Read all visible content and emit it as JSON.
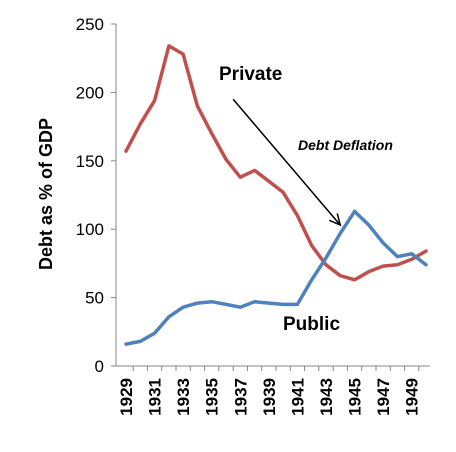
{
  "chart_data": {
    "type": "line",
    "ylabel": "Debt as % of GDP",
    "xlabel": "",
    "ylim": [
      0,
      250
    ],
    "yticks": [
      0,
      50,
      100,
      150,
      200,
      250
    ],
    "x": [
      1929,
      1930,
      1931,
      1932,
      1933,
      1934,
      1935,
      1936,
      1937,
      1938,
      1939,
      1940,
      1941,
      1942,
      1943,
      1944,
      1945,
      1946,
      1947,
      1948,
      1949,
      1950
    ],
    "xticks": [
      "1929",
      "1931",
      "1933",
      "1935",
      "1937",
      "1939",
      "1941",
      "1943",
      "1945",
      "1947",
      "1949"
    ],
    "grid": false,
    "series": [
      {
        "name": "Private",
        "color": "#c0504d",
        "values": [
          157,
          177,
          194,
          234,
          228,
          190,
          170,
          151,
          138,
          143,
          135,
          127,
          110,
          88,
          74,
          66,
          63,
          69,
          73,
          74,
          78,
          84
        ]
      },
      {
        "name": "Public",
        "color": "#4f81bd",
        "values": [
          16,
          18,
          24,
          36,
          43,
          46,
          47,
          45,
          43,
          47,
          46,
          45,
          45,
          63,
          79,
          97,
          113,
          103,
          90,
          80,
          82,
          74
        ]
      }
    ],
    "annotation": {
      "text": "Debt Deflation",
      "from": {
        "x": 1936.5,
        "y": 195
      },
      "to": {
        "x": 1944,
        "y": 103
      }
    }
  }
}
